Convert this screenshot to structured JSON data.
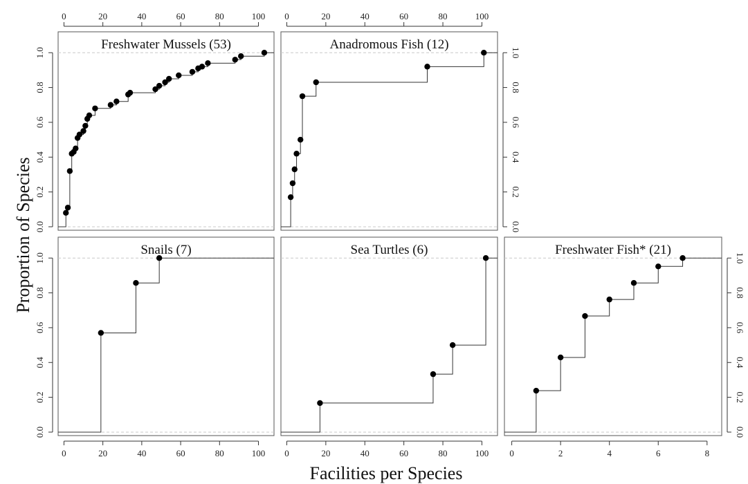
{
  "figure": {
    "xlabel": "Facilities per Species",
    "ylabel": "Proportion of Species"
  },
  "chart_data": [
    {
      "type": "line",
      "step": true,
      "title": "Freshwater Mussels (53)",
      "xlim": [
        -3,
        108
      ],
      "ylim": [
        -0.02,
        1.12
      ],
      "x_ticks": [
        0,
        20,
        40,
        60,
        80,
        100
      ],
      "y_ticks": [
        0.0,
        0.2,
        0.4,
        0.6,
        0.8,
        1.0
      ],
      "x_axis_side": "top",
      "y_axis_side": "left",
      "x_tick_labels_shown": true,
      "y_tick_labels_shown": true,
      "points": [
        [
          1,
          0.08
        ],
        [
          2,
          0.11
        ],
        [
          3,
          0.32
        ],
        [
          4,
          0.42
        ],
        [
          5,
          0.43
        ],
        [
          6,
          0.45
        ],
        [
          7,
          0.51
        ],
        [
          8,
          0.53
        ],
        [
          10,
          0.55
        ],
        [
          11,
          0.58
        ],
        [
          12,
          0.62
        ],
        [
          13,
          0.64
        ],
        [
          16,
          0.68
        ],
        [
          24,
          0.7
        ],
        [
          27,
          0.72
        ],
        [
          33,
          0.76
        ],
        [
          34,
          0.77
        ],
        [
          47,
          0.79
        ],
        [
          49,
          0.81
        ],
        [
          52,
          0.83
        ],
        [
          54,
          0.85
        ],
        [
          59,
          0.87
        ],
        [
          66,
          0.89
        ],
        [
          69,
          0.91
        ],
        [
          71,
          0.92
        ],
        [
          74,
          0.94
        ],
        [
          88,
          0.96
        ],
        [
          91,
          0.98
        ],
        [
          103,
          1.0
        ]
      ],
      "x_start": -3,
      "x_end": 108
    },
    {
      "type": "line",
      "step": true,
      "title": "Anadromous Fish (12)",
      "xlim": [
        -3,
        108
      ],
      "ylim": [
        -0.02,
        1.12
      ],
      "x_ticks": [
        0,
        20,
        40,
        60,
        80,
        100
      ],
      "y_ticks": [
        0.0,
        0.2,
        0.4,
        0.6,
        0.8,
        1.0
      ],
      "x_axis_side": "top",
      "y_axis_side": "right",
      "x_tick_labels_shown": true,
      "y_tick_labels_shown": true,
      "points": [
        [
          2,
          0.17
        ],
        [
          3,
          0.25
        ],
        [
          4,
          0.33
        ],
        [
          5,
          0.42
        ],
        [
          7,
          0.5
        ],
        [
          8,
          0.75
        ],
        [
          15,
          0.83
        ],
        [
          72,
          0.92
        ],
        [
          101,
          1.0
        ]
      ],
      "x_start": -3,
      "x_end": 108
    },
    {
      "type": "line",
      "step": true,
      "title": "Snails (7)",
      "xlim": [
        -3,
        108
      ],
      "ylim": [
        -0.02,
        1.12
      ],
      "x_ticks": [
        0,
        20,
        40,
        60,
        80,
        100
      ],
      "y_ticks": [
        0.0,
        0.2,
        0.4,
        0.6,
        0.8,
        1.0
      ],
      "x_axis_side": "bottom",
      "y_axis_side": "left",
      "x_tick_labels_shown": true,
      "y_tick_labels_shown": true,
      "points": [
        [
          19,
          0.57
        ],
        [
          37,
          0.857
        ],
        [
          49,
          1.0
        ]
      ],
      "x_start": -3,
      "x_end": 108
    },
    {
      "type": "line",
      "step": true,
      "title": "Sea Turtles (6)",
      "xlim": [
        -3,
        108
      ],
      "ylim": [
        -0.02,
        1.12
      ],
      "x_ticks": [
        0,
        20,
        40,
        60,
        80,
        100
      ],
      "y_ticks": [
        0.0,
        0.2,
        0.4,
        0.6,
        0.8,
        1.0
      ],
      "x_axis_side": "bottom",
      "y_axis_side": "none",
      "x_tick_labels_shown": true,
      "y_tick_labels_shown": false,
      "points": [
        [
          17,
          0.167
        ],
        [
          75,
          0.333
        ],
        [
          85,
          0.5
        ],
        [
          102,
          1.0
        ]
      ],
      "x_start": -3,
      "x_end": 108
    },
    {
      "type": "line",
      "step": true,
      "title": "Freshwater Fish* (21)",
      "xlim": [
        -0.3,
        8.6
      ],
      "ylim": [
        -0.02,
        1.12
      ],
      "x_ticks": [
        0,
        2,
        4,
        6,
        8
      ],
      "y_ticks": [
        0.0,
        0.2,
        0.4,
        0.6,
        0.8,
        1.0
      ],
      "x_axis_side": "bottom",
      "y_axis_side": "right",
      "x_tick_labels_shown": true,
      "y_tick_labels_shown": true,
      "points": [
        [
          1,
          0.238
        ],
        [
          2,
          0.429
        ],
        [
          3,
          0.667
        ],
        [
          4,
          0.762
        ],
        [
          5,
          0.857
        ],
        [
          6,
          0.952
        ],
        [
          7,
          1.0
        ]
      ],
      "x_start": -0.3,
      "x_end": 8.6
    }
  ]
}
